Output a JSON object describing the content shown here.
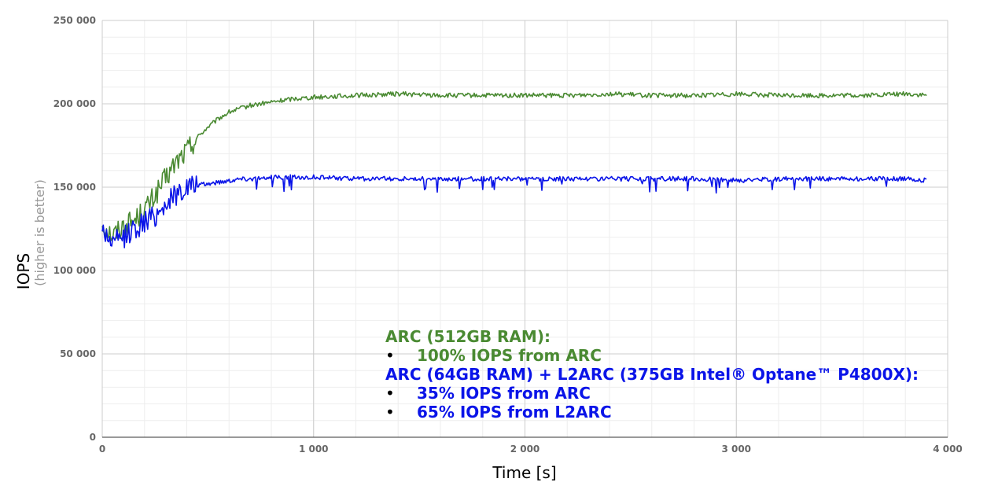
{
  "chart_data": {
    "type": "line",
    "xlabel": "Time [s]",
    "ylabel": "IOPS",
    "ylabel_sub": "(higher is better)",
    "xlim": [
      0,
      4000
    ],
    "ylim": [
      0,
      250000
    ],
    "x_ticks": [
      {
        "value": 0,
        "label": "0"
      },
      {
        "value": 1000,
        "label": "1 000"
      },
      {
        "value": 2000,
        "label": "2 000"
      },
      {
        "value": 3000,
        "label": "3 000"
      },
      {
        "value": 4000,
        "label": "4 000"
      }
    ],
    "y_ticks": [
      {
        "value": 0,
        "label": "0"
      },
      {
        "value": 50000,
        "label": "50 000"
      },
      {
        "value": 100000,
        "label": "100 000"
      },
      {
        "value": 150000,
        "label": "150 000"
      },
      {
        "value": 200000,
        "label": "200 000"
      },
      {
        "value": 250000,
        "label": "250 000"
      }
    ],
    "grid": true,
    "series": [
      {
        "color": "#4a8a32",
        "x": [
          0,
          50,
          100,
          150,
          200,
          250,
          300,
          350,
          400,
          450,
          500,
          550,
          600,
          650,
          700,
          750,
          800,
          900,
          1000,
          1200,
          1400,
          1600,
          1800,
          2000,
          2200,
          2400,
          2600,
          2800,
          3000,
          3200,
          3400,
          3600,
          3800,
          3900
        ],
        "y": [
          128000,
          121000,
          127000,
          130000,
          136000,
          145000,
          155000,
          165000,
          172000,
          180000,
          186000,
          191000,
          195000,
          197000,
          199000,
          200000,
          201000,
          203000,
          204000,
          205000,
          206000,
          205000,
          205000,
          205000,
          205000,
          206000,
          205000,
          205000,
          206000,
          205000,
          205000,
          205000,
          206000,
          205000
        ]
      },
      {
        "color": "#0a14e8",
        "x": [
          0,
          50,
          100,
          150,
          200,
          250,
          300,
          350,
          400,
          450,
          500,
          550,
          600,
          650,
          700,
          800,
          900,
          1000,
          1200,
          1400,
          1600,
          1800,
          2000,
          2200,
          2400,
          2600,
          2800,
          3000,
          3200,
          3400,
          3600,
          3800,
          3900
        ],
        "y": [
          125000,
          116000,
          120000,
          125000,
          129000,
          133000,
          140000,
          146000,
          150000,
          151000,
          152000,
          153000,
          154000,
          155000,
          155000,
          156000,
          156000,
          156000,
          155000,
          155000,
          155000,
          155000,
          155000,
          155000,
          155000,
          155000,
          155000,
          154000,
          155000,
          155000,
          155000,
          155000,
          154000
        ]
      }
    ],
    "legend": {
      "position": "bottom-center",
      "arc_title": "ARC (512GB RAM):",
      "arc_items": [
        "100% IOPS from ARC"
      ],
      "l2arc_title": "ARC (64GB RAM) + L2ARC (375GB Intel® Optane™ P4800X):",
      "l2arc_items": [
        "35% IOPS from ARC",
        "65% IOPS from L2ARC"
      ],
      "bullet": "•"
    }
  }
}
